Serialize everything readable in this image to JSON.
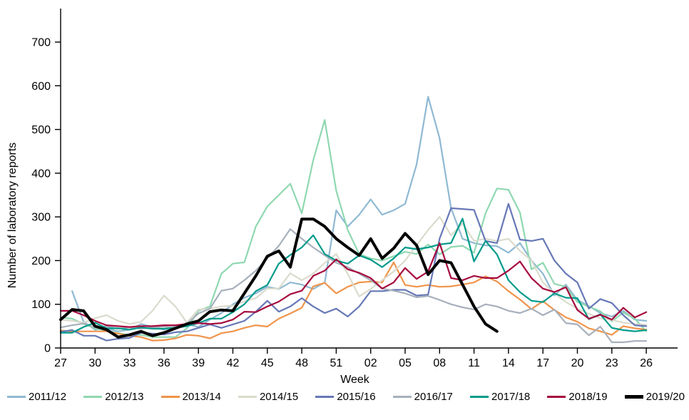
{
  "chart_data": {
    "type": "line",
    "title": "",
    "xlabel": "Week",
    "ylabel": "Number of laboratory reports",
    "ylim": [
      0,
      700
    ],
    "ytick_interval": 100,
    "grid": false,
    "legend_position": "bottom",
    "x_note": "weeks run 27-52 of first year then 01-26 of next year",
    "categories": [
      "27",
      "28",
      "29",
      "30",
      "31",
      "32",
      "33",
      "34",
      "35",
      "36",
      "37",
      "38",
      "39",
      "40",
      "41",
      "42",
      "43",
      "44",
      "45",
      "46",
      "47",
      "48",
      "49",
      "50",
      "51",
      "52",
      "01",
      "02",
      "03",
      "04",
      "05",
      "06",
      "07",
      "08",
      "09",
      "10",
      "11",
      "12",
      "13",
      "14",
      "15",
      "16",
      "17",
      "18",
      "19",
      "20",
      "21",
      "22",
      "23",
      "24",
      "25",
      "26"
    ],
    "x_labels_shown": [
      "27",
      "30",
      "33",
      "36",
      "39",
      "42",
      "45",
      "48",
      "51",
      "02",
      "05",
      "08",
      "11",
      "14",
      "17",
      "20",
      "23",
      "26"
    ],
    "series": [
      {
        "name": "2011/12",
        "color": "#8fb9d2",
        "stroke_width": 2.2,
        "values": [
          null,
          130,
          60,
          42,
          45,
          38,
          42,
          55,
          48,
          42,
          50,
          55,
          48,
          65,
          80,
          100,
          115,
          125,
          140,
          135,
          150,
          145,
          135,
          150,
          315,
          278,
          305,
          340,
          305,
          315,
          330,
          420,
          575,
          480,
          320,
          250,
          240,
          235,
          233,
          218,
          240,
          200,
          170,
          120,
          145,
          110,
          96,
          80,
          72,
          85,
          65,
          62
        ]
      },
      {
        "name": "2012/13",
        "color": "#8fd8b1",
        "stroke_width": 2.2,
        "values": [
          70,
          67,
          55,
          45,
          40,
          34,
          30,
          30,
          25,
          25,
          25,
          45,
          85,
          95,
          170,
          193,
          196,
          278,
          324,
          350,
          376,
          308,
          430,
          522,
          360,
          270,
          215,
          205,
          200,
          210,
          220,
          215,
          237,
          214,
          231,
          234,
          218,
          308,
          365,
          362,
          310,
          180,
          195,
          147,
          140,
          105,
          95,
          84,
          61,
          81,
          67,
          38
        ]
      },
      {
        "name": "2013/14",
        "color": "#f0944a",
        "stroke_width": 2.2,
        "values": [
          40,
          38,
          38,
          38,
          38,
          33,
          28,
          25,
          17,
          18,
          22,
          30,
          28,
          22,
          34,
          38,
          46,
          52,
          49,
          67,
          79,
          92,
          141,
          149,
          125,
          140,
          150,
          152,
          150,
          196,
          144,
          140,
          144,
          140,
          141,
          145,
          150,
          164,
          152,
          130,
          111,
          89,
          107,
          87,
          70,
          60,
          45,
          38,
          30,
          50,
          45,
          42
        ]
      },
      {
        "name": "2014/15",
        "color": "#dbdbcd",
        "stroke_width": 2.2,
        "values": [
          65,
          62,
          58,
          68,
          75,
          62,
          55,
          60,
          85,
          120,
          95,
          58,
          88,
          90,
          95,
          97,
          106,
          114,
          136,
          136,
          171,
          155,
          170,
          195,
          215,
          170,
          118,
          135,
          155,
          175,
          200,
          235,
          270,
          300,
          258,
          285,
          245,
          250,
          245,
          250,
          222,
          200,
          150,
          125,
          105,
          90,
          78,
          68,
          64,
          58,
          55,
          53
        ]
      },
      {
        "name": "2015/16",
        "color": "#6678b6",
        "stroke_width": 2.2,
        "values": [
          37,
          41,
          28,
          28,
          17,
          21,
          23,
          35,
          33,
          31,
          36,
          38,
          46,
          54,
          46,
          54,
          62,
          83,
          108,
          83,
          95,
          114,
          95,
          80,
          90,
          72,
          95,
          130,
          130,
          133,
          133,
          120,
          122,
          250,
          320,
          318,
          316,
          245,
          240,
          330,
          248,
          245,
          250,
          200,
          170,
          150,
          90,
          112,
          103,
          75,
          52,
          50
        ]
      },
      {
        "name": "2016/17",
        "color": "#a7b0bc",
        "stroke_width": 2.2,
        "values": [
          47,
          52,
          56,
          47,
          50,
          44,
          47,
          44,
          47,
          49,
          47,
          55,
          79,
          90,
          131,
          136,
          155,
          177,
          205,
          234,
          272,
          250,
          230,
          212,
          195,
          185,
          170,
          155,
          136,
          131,
          125,
          116,
          119,
          110,
          100,
          93,
          88,
          100,
          95,
          85,
          80,
          90,
          75,
          88,
          57,
          54,
          29,
          49,
          13,
          13,
          16,
          16
        ]
      },
      {
        "name": "2017/18",
        "color": "#009b8b",
        "stroke_width": 2.2,
        "values": [
          35,
          35,
          48,
          58,
          45,
          45,
          42,
          47,
          44,
          44,
          46,
          50,
          57,
          67,
          67,
          82,
          100,
          130,
          144,
          193,
          213,
          230,
          258,
          215,
          200,
          193,
          212,
          202,
          185,
          205,
          230,
          226,
          230,
          237,
          240,
          296,
          198,
          245,
          214,
          155,
          128,
          108,
          105,
          125,
          115,
          114,
          66,
          77,
          46,
          41,
          38,
          41
        ]
      },
      {
        "name": "2018/19",
        "color": "#a60a3d",
        "stroke_width": 2.2,
        "values": [
          85,
          85,
          75,
          62,
          52,
          50,
          48,
          50,
          50,
          52,
          52,
          55,
          57,
          55,
          57,
          65,
          83,
          82,
          95,
          106,
          123,
          131,
          165,
          177,
          203,
          180,
          172,
          160,
          136,
          150,
          183,
          158,
          175,
          240,
          160,
          155,
          165,
          160,
          160,
          177,
          198,
          160,
          136,
          128,
          139,
          87,
          67,
          76,
          65,
          92,
          70,
          82
        ]
      },
      {
        "name": "2019/20",
        "color": "#000000",
        "stroke_width": 4,
        "values": [
          65,
          88,
          85,
          50,
          42,
          25,
          30,
          38,
          28,
          35,
          45,
          55,
          62,
          83,
          87,
          85,
          125,
          165,
          210,
          222,
          185,
          295,
          295,
          278,
          250,
          230,
          212,
          250,
          205,
          228,
          262,
          235,
          168,
          200,
          195,
          145,
          95,
          55,
          38,
          null,
          null,
          null,
          null,
          null,
          null,
          null,
          null,
          null,
          null,
          null,
          null,
          null
        ]
      }
    ]
  }
}
